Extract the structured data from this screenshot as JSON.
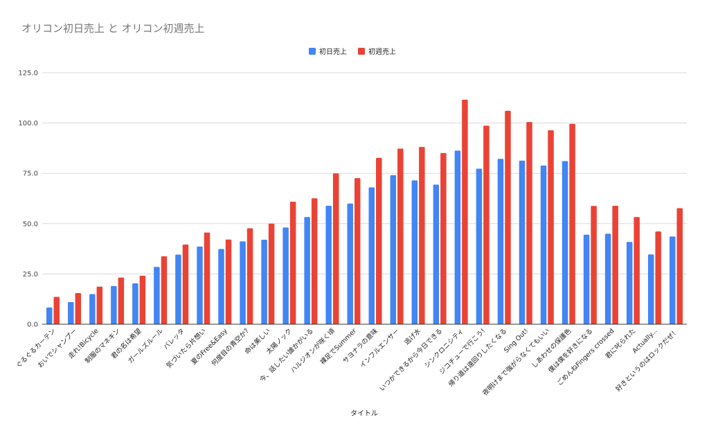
{
  "chart_data": {
    "type": "bar",
    "title": "オリコン初日売上 と オリコン初週売上",
    "xlabel": "タイトル",
    "ylabel": "",
    "ylim": [
      0,
      125
    ],
    "yticks": [
      "0.0",
      "25.0",
      "50.0",
      "75.0",
      "100.0",
      "125.0"
    ],
    "ytick_values": [
      0,
      25,
      50,
      75,
      100,
      125
    ],
    "grid": true,
    "legend_position": "top",
    "categories": [
      "ぐるぐるカーテン",
      "おいでシャンプー",
      "走れ!Bicycle",
      "制服のマネキン",
      "君の名は希望",
      "ガールズルール",
      "バレッタ",
      "気づいたら片想い",
      "夏のFree&Easy",
      "何度目の青空か?",
      "命は美しい",
      "太陽ノック",
      "今、話したい誰かがいる",
      "ハルジオンが咲く頃",
      "裸足でSummer",
      "サヨナラの意味",
      "インフルエンサー",
      "逃げ水",
      "いつかできるから今日できる",
      "シンクロニシティ",
      "ジコチューで行こう!",
      "帰り道は遠回りしたくなる",
      "Sing Out!",
      "夜明けまで強がらなくてもいい",
      "しあわせの保護色",
      "僕は僕を好きになる",
      "ごめんねFingers crossed",
      "君に叱られた",
      "Actually...",
      "好きというのはロックだぜ！"
    ],
    "series": [
      {
        "name": "初日売上",
        "color": "#4285f4",
        "values": [
          8.3,
          11.0,
          15.0,
          19.0,
          20.3,
          28.5,
          34.6,
          38.6,
          37.4,
          41.2,
          42.0,
          48.1,
          53.3,
          58.9,
          60.0,
          68.0,
          74.1,
          71.5,
          69.4,
          86.3,
          77.3,
          82.2,
          81.3,
          78.9,
          81.1,
          44.5,
          45.0,
          40.9,
          34.7,
          43.6
        ]
      },
      {
        "name": "初週売上",
        "color": "#ea4335",
        "values": [
          13.6,
          15.5,
          18.7,
          23.2,
          24.1,
          33.8,
          39.6,
          45.6,
          42.1,
          47.7,
          50.0,
          60.9,
          62.6,
          75.0,
          72.6,
          82.7,
          87.3,
          88.1,
          85.1,
          111.6,
          98.7,
          106.1,
          100.5,
          96.4,
          99.6,
          58.8,
          58.9,
          53.3,
          46.1,
          57.7
        ]
      }
    ]
  }
}
